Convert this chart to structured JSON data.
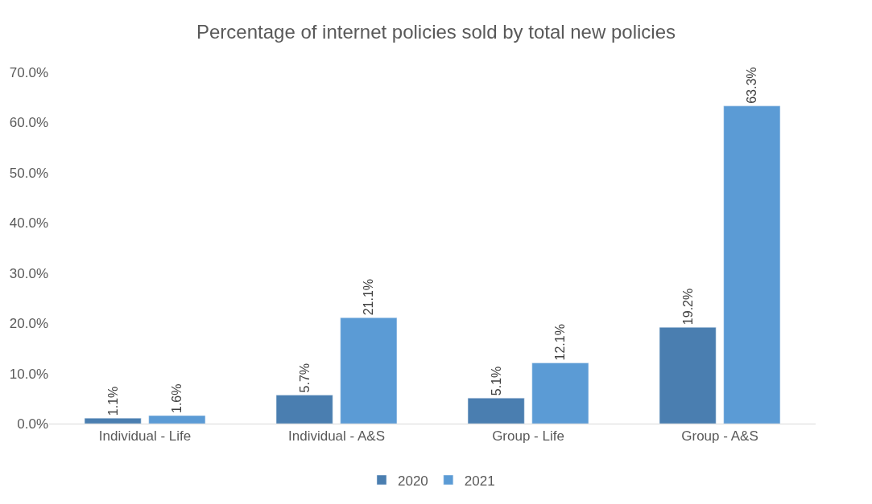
{
  "chart_data": {
    "type": "bar",
    "title": "Percentage of internet policies sold by total new policies",
    "categories": [
      "Individual - Life",
      "Individual - A&S",
      "Group - Life",
      "Group - A&S"
    ],
    "series": [
      {
        "name": "2020",
        "color": "#4a7eb0",
        "values": [
          1.1,
          5.7,
          5.1,
          19.2
        ],
        "value_labels": [
          "1.1%",
          "5.7%",
          "5.1%",
          "19.2%"
        ]
      },
      {
        "name": "2021",
        "color": "#5b9bd5",
        "values": [
          1.6,
          21.1,
          12.1,
          63.3
        ],
        "value_labels": [
          "1.6%",
          "21.1%",
          "12.1%",
          "63.3%"
        ]
      }
    ],
    "ylim": [
      0,
      70
    ],
    "yticks": [
      {
        "value": 0,
        "label": "0.0%"
      },
      {
        "value": 10,
        "label": "10.0%"
      },
      {
        "value": 20,
        "label": "20.0%"
      },
      {
        "value": 30,
        "label": "30.0%"
      },
      {
        "value": 40,
        "label": "40.0%"
      },
      {
        "value": 50,
        "label": "50.0%"
      },
      {
        "value": 60,
        "label": "60.0%"
      },
      {
        "value": 70,
        "label": "70.0%"
      }
    ],
    "grid": false,
    "legend": "bottom"
  }
}
